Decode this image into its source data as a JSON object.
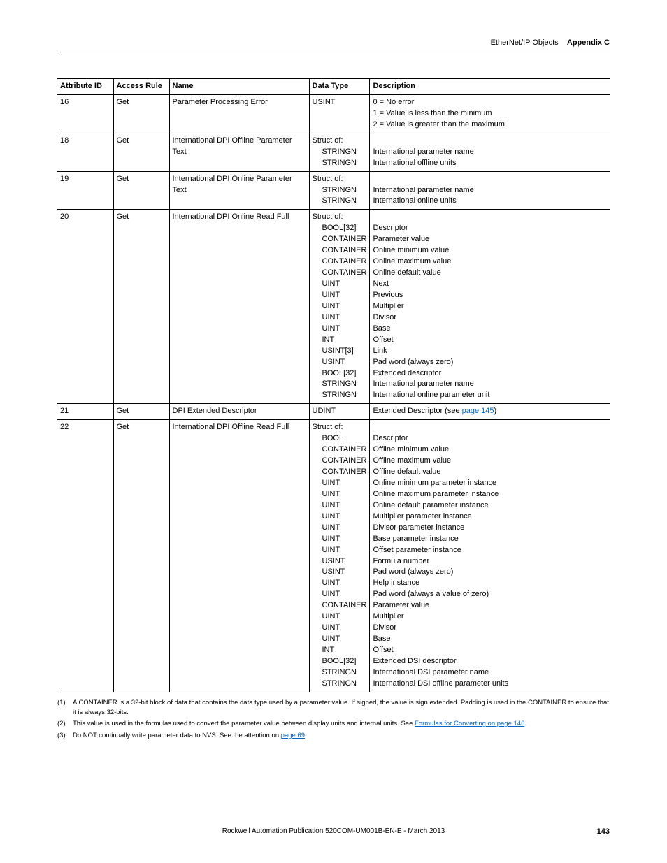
{
  "header": {
    "breadcrumb_left": "EtherNet/IP Objects",
    "breadcrumb_right": "Appendix C"
  },
  "table": {
    "columns": [
      "Attribute ID",
      "Access Rule",
      "Name",
      "Data Type",
      "Description"
    ],
    "rows": [
      {
        "attr": "16",
        "rule": "Get",
        "name": "Parameter Processing Error",
        "types": [
          "USINT"
        ],
        "indent": false,
        "descs": [
          "0 = No error",
          "1 = Value is less than the minimum",
          "2 = Value is greater than the maximum"
        ]
      },
      {
        "attr": "18",
        "rule": "Get",
        "name": "International DPI Offline Parameter Text",
        "types": [
          "Struct of:",
          "STRINGN",
          "STRINGN"
        ],
        "indent": true,
        "descs": [
          "",
          "International parameter name",
          "International offline units"
        ]
      },
      {
        "attr": "19",
        "rule": "Get",
        "name": "International DPI Online Parameter Text",
        "types": [
          "Struct of:",
          "STRINGN",
          "STRINGN"
        ],
        "indent": true,
        "descs": [
          "",
          "International parameter name",
          "International online units"
        ]
      },
      {
        "attr": "20",
        "rule": "Get",
        "name": "International DPI Online Read Full",
        "types": [
          "Struct of:",
          "BOOL[32]",
          "CONTAINER",
          "CONTAINER",
          "CONTAINER",
          "CONTAINER",
          "UINT",
          "UINT",
          "UINT",
          "UINT",
          "UINT",
          "INT",
          "USINT[3]",
          "USINT",
          "BOOL[32]",
          "STRINGN",
          "STRINGN"
        ],
        "indent": true,
        "descs": [
          "",
          "Descriptor",
          "Parameter value",
          "Online minimum value",
          "Online maximum value",
          "Online default value",
          "Next",
          "Previous",
          "Multiplier",
          "Divisor",
          "Base",
          "Offset",
          "Link",
          "Pad word (always zero)",
          "Extended descriptor",
          "International parameter name",
          "International online parameter unit"
        ]
      },
      {
        "attr": "21",
        "rule": "Get",
        "name": "DPI Extended Descriptor",
        "types": [
          "UDINT"
        ],
        "indent": false,
        "descs_html": "Extended Descriptor (see <a class=\"link\" href=\"#\">page 145</a>)"
      },
      {
        "attr": "22",
        "rule": "Get",
        "name": "International DPI Offline Read Full",
        "types": [
          "Struct of:",
          "BOOL",
          "CONTAINER",
          "CONTAINER",
          "CONTAINER",
          "UINT",
          "UINT",
          "UINT",
          "UINT",
          "UINT",
          "UINT",
          "UINT",
          "USINT",
          "USINT",
          "UINT",
          "UINT",
          "CONTAINER",
          "UINT",
          "UINT",
          "UINT",
          "INT",
          "BOOL[32]",
          "STRINGN",
          "STRINGN"
        ],
        "indent": true,
        "descs": [
          "",
          "Descriptor",
          "Offline minimum value",
          "Offline maximum value",
          "Offline default value",
          "Online minimum parameter instance",
          "Online maximum parameter instance",
          "Online default parameter instance",
          "Multiplier parameter instance",
          "Divisor parameter instance",
          "Base parameter instance",
          "Offset parameter instance",
          "Formula number",
          "Pad word (always zero)",
          "Help instance",
          "Pad word (always a value of zero)",
          "Parameter value",
          "Multiplier",
          "Divisor",
          "Base",
          "Offset",
          "Extended DSI descriptor",
          "International DSI parameter name",
          "International DSI offline parameter units"
        ]
      }
    ]
  },
  "footnotes": [
    {
      "num": "(1)",
      "text": "A CONTAINER is a 32-bit block of data that contains the data type used by a parameter value. If signed, the value is sign extended. Padding is used in the CONTAINER to ensure that it is always 32-bits."
    },
    {
      "num": "(2)",
      "text_html": "This value is used in the formulas used to convert the parameter value between display units and internal units. See <a class=\"link\" href=\"#\">Formulas for Converting on page 146</a>."
    },
    {
      "num": "(3)",
      "text_html": "Do NOT continually write parameter data to NVS. See the attention on <a class=\"link\" href=\"#\">page 69</a>."
    }
  ],
  "footer": {
    "publication": "Rockwell Automation Publication 520COM-UM001B-EN-E - March 2013",
    "page": "143"
  }
}
